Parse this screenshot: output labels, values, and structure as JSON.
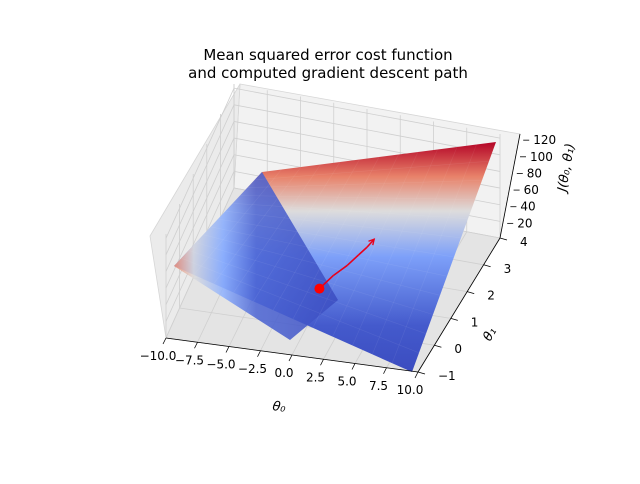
{
  "chart_data": {
    "type": "surface3d",
    "title_line1": "Mean squared error cost function",
    "title_line2": "and computed gradient descent path",
    "xlabel": "θ₀",
    "ylabel": "θ₁",
    "zlabel": "J(θ₀, θ₁)",
    "xlim": [
      -10,
      10
    ],
    "ylim": [
      -1,
      4
    ],
    "zlim": [
      0,
      125
    ],
    "xticks": [
      -10.0,
      -7.5,
      -5.0,
      -2.5,
      0.0,
      2.5,
      5.0,
      7.5,
      10.0
    ],
    "xtick_labels": [
      "−10.0",
      "−7.5",
      "−5.0",
      "−2.5",
      "0.0",
      "2.5",
      "5.0",
      "7.5",
      "10.0"
    ],
    "yticks": [
      -1,
      0,
      1,
      2,
      3,
      4
    ],
    "ytick_labels": [
      "−1",
      "0",
      "1",
      "2",
      "3",
      "4"
    ],
    "zticks": [
      20,
      40,
      60,
      80,
      100,
      120
    ],
    "ztick_labels": [
      "20",
      "40",
      "60",
      "80",
      "100",
      "120"
    ],
    "colormap": "coolwarm",
    "grid": true,
    "surface_corners": [
      {
        "theta0": -10,
        "theta1": -1,
        "J": 40
      },
      {
        "theta0": 10,
        "theta1": -1,
        "J": 3
      },
      {
        "theta0": 10,
        "theta1": 4,
        "J": 125
      },
      {
        "theta0": -10,
        "theta1": 4,
        "J": 4
      }
    ],
    "descent_path": {
      "color": "#e8001c",
      "theta0": [
        -0.2,
        0.3,
        0.9,
        1.3,
        1.6,
        1.8
      ],
      "theta1": [
        1.0,
        1.5,
        1.9,
        2.3,
        2.6,
        2.9
      ],
      "J": [
        11,
        11,
        11,
        11,
        11,
        11
      ],
      "start": {
        "theta0": -0.2,
        "theta1": 1.0,
        "J": 11
      }
    }
  }
}
